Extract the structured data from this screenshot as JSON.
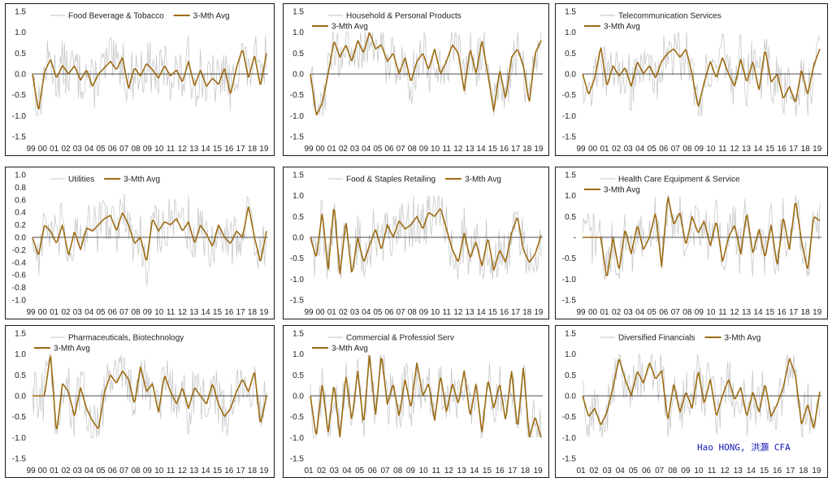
{
  "chart_data": [
    {
      "type": "line",
      "title": "",
      "xlabel": "",
      "ylabel": "",
      "ylim": [
        -1.5,
        1.5
      ],
      "ytick_labels": [
        "1.5",
        "1.0",
        "0.5",
        "0.0",
        "-0.5",
        "-1.0",
        "-1.5"
      ],
      "yticks": [
        1.5,
        1.0,
        0.5,
        0.0,
        -0.5,
        -1.0,
        -1.5
      ],
      "xtick_labels": [
        "99",
        "00",
        "01",
        "02",
        "03",
        "04",
        "05",
        "06",
        "07",
        "08",
        "09",
        "10",
        "11",
        "12",
        "13",
        "14",
        "15",
        "16",
        "17",
        "18",
        "19"
      ],
      "legend": [
        "Food Beverage & Tobacco",
        "3-Mth Avg"
      ],
      "legend_layout": "single-row",
      "avg_key": [
        0.0,
        -0.9,
        0.05,
        0.35,
        -0.1,
        0.2,
        0.0,
        0.2,
        -0.15,
        0.1,
        -0.3,
        0.0,
        0.15,
        0.3,
        0.1,
        0.4,
        -0.35,
        0.15,
        -0.05,
        0.25,
        0.1,
        -0.1,
        0.2,
        -0.05,
        0.1,
        -0.2,
        0.3,
        -0.3,
        0.1,
        -0.3,
        -0.1,
        -0.25,
        0.15,
        -0.5,
        0.15,
        0.6,
        -0.1,
        0.45,
        -0.3,
        0.5
      ]
    },
    {
      "type": "line",
      "title": "",
      "xlabel": "",
      "ylabel": "",
      "ylim": [
        -1.5,
        1.5
      ],
      "ytick_labels": [
        "1.5",
        "1.0",
        "0.5",
        "0.0",
        "-0.5",
        "-1.0",
        "-1.5"
      ],
      "yticks": [
        1.5,
        1.0,
        0.5,
        0.0,
        -0.5,
        -1.0,
        -1.5
      ],
      "xtick_labels": [
        "99",
        "00",
        "01",
        "02",
        "03",
        "04",
        "05",
        "06",
        "07",
        "08",
        "09",
        "10",
        "11",
        "12",
        "13",
        "14",
        "15",
        "16",
        "17",
        "18",
        "19"
      ],
      "legend": [
        "Household & Personal Products",
        "3-Mth Avg"
      ],
      "legend_layout": "two-rows",
      "avg_key": [
        0.0,
        -1.0,
        -0.7,
        0.0,
        0.8,
        0.4,
        0.7,
        0.3,
        0.8,
        0.5,
        1.0,
        0.6,
        0.7,
        0.3,
        0.5,
        0.0,
        0.4,
        -0.2,
        0.3,
        0.5,
        0.1,
        0.6,
        0.0,
        0.3,
        0.7,
        0.5,
        -0.4,
        0.6,
        0.0,
        0.8,
        0.0,
        -0.9,
        0.1,
        -0.6,
        0.4,
        0.6,
        0.2,
        -0.7,
        0.5,
        0.8
      ]
    },
    {
      "type": "line",
      "title": "",
      "xlabel": "",
      "ylabel": "",
      "ylim": [
        -1.5,
        1.5
      ],
      "ytick_labels": [
        "1.5",
        "1.0",
        "0.5",
        "0.0",
        "-0.5",
        "-1.0",
        "-1.5"
      ],
      "yticks": [
        1.5,
        1.0,
        0.5,
        0.0,
        -0.5,
        -1.0,
        -1.5
      ],
      "xtick_labels": [
        "99",
        "00",
        "01",
        "02",
        "03",
        "04",
        "05",
        "06",
        "07",
        "08",
        "09",
        "10",
        "11",
        "12",
        "13",
        "14",
        "15",
        "16",
        "17",
        "18",
        "19"
      ],
      "legend": [
        "Telecommunication Services",
        "3-Mth Avg"
      ],
      "legend_layout": "two-rows",
      "avg_key": [
        0.0,
        -0.5,
        -0.1,
        0.65,
        -0.3,
        0.2,
        -0.05,
        0.15,
        -0.3,
        0.3,
        0.0,
        0.2,
        -0.1,
        0.3,
        0.5,
        0.6,
        0.4,
        0.6,
        0.0,
        -0.8,
        -0.2,
        0.3,
        -0.1,
        0.4,
        0.0,
        -0.3,
        0.35,
        -0.2,
        0.3,
        -0.4,
        0.6,
        -0.2,
        0.0,
        -0.6,
        -0.3,
        -0.7,
        0.1,
        -0.5,
        0.2,
        0.6
      ]
    },
    {
      "type": "line",
      "title": "",
      "xlabel": "",
      "ylabel": "",
      "ylim": [
        -1.0,
        1.0
      ],
      "ytick_labels": [
        "1.0",
        "0.8",
        "0.6",
        "0.4",
        "0.2",
        "0.0",
        "-0.2",
        "-0.4",
        "-0.6",
        "-0.8",
        "-1.0"
      ],
      "yticks": [
        1.0,
        0.8,
        0.6,
        0.4,
        0.2,
        0.0,
        -0.2,
        -0.4,
        -0.6,
        -0.8,
        -1.0
      ],
      "xtick_labels": [
        "99",
        "00",
        "01",
        "02",
        "03",
        "04",
        "05",
        "06",
        "07",
        "08",
        "09",
        "10",
        "11",
        "12",
        "13",
        "14",
        "15",
        "16",
        "17",
        "18",
        "19"
      ],
      "legend": [
        "Utilities",
        "3-Mth Avg"
      ],
      "legend_layout": "single-row",
      "avg_key": [
        0.0,
        -0.3,
        0.2,
        0.1,
        -0.1,
        0.2,
        -0.3,
        0.1,
        -0.2,
        0.15,
        0.1,
        0.2,
        0.3,
        0.35,
        0.1,
        0.4,
        0.2,
        -0.1,
        0.0,
        -0.4,
        0.3,
        0.1,
        0.25,
        0.2,
        0.3,
        0.1,
        0.25,
        -0.1,
        0.2,
        0.05,
        -0.15,
        0.2,
        0.0,
        -0.1,
        0.1,
        0.0,
        0.5,
        0.0,
        -0.4,
        0.1
      ]
    },
    {
      "type": "line",
      "title": "",
      "xlabel": "",
      "ylabel": "",
      "ylim": [
        -1.5,
        1.5
      ],
      "ytick_labels": [
        "1.5",
        "1.0",
        "0.5",
        "0.0",
        "-0.5",
        "-1.0",
        "-1.5"
      ],
      "yticks": [
        1.5,
        1.0,
        0.5,
        0.0,
        -0.5,
        -1.0,
        -1.5
      ],
      "xtick_labels": [
        "99",
        "00",
        "01",
        "02",
        "03",
        "04",
        "05",
        "06",
        "07",
        "08",
        "09",
        "10",
        "11",
        "12",
        "13",
        "14",
        "15",
        "16",
        "17",
        "18",
        "19"
      ],
      "legend": [
        "Food & Staples Retailing",
        "3-Mth Avg"
      ],
      "legend_layout": "single-row",
      "avg_key": [
        0.0,
        -0.5,
        0.6,
        -0.8,
        0.8,
        -0.9,
        0.4,
        -0.9,
        0.0,
        -0.6,
        -0.2,
        0.2,
        -0.3,
        0.3,
        0.0,
        0.4,
        0.2,
        0.3,
        0.5,
        0.2,
        0.6,
        0.5,
        0.7,
        0.2,
        -0.3,
        -0.6,
        0.1,
        -0.5,
        -0.1,
        -0.7,
        0.0,
        -0.8,
        -0.3,
        -0.6,
        0.1,
        0.5,
        -0.3,
        -0.6,
        -0.4,
        0.05
      ]
    },
    {
      "type": "line",
      "title": "",
      "xlabel": "",
      "ylabel": "",
      "ylim": [
        -1.5,
        1.5
      ],
      "ytick_labels": [
        "1.5",
        "1.0",
        "0.5",
        "-",
        "-0.5",
        "-1.0",
        "-1.5"
      ],
      "yticks": [
        1.5,
        1.0,
        0.5,
        0.0,
        -0.5,
        -1.0,
        -1.5
      ],
      "xtick_labels": [
        "99",
        "00",
        "01",
        "02",
        "03",
        "04",
        "05",
        "06",
        "07",
        "08",
        "09",
        "10",
        "11",
        "12",
        "13",
        "14",
        "15",
        "16",
        "17",
        "18",
        "19"
      ],
      "legend": [
        "Health Care Equipment & Service",
        "3-Mth Avg"
      ],
      "legend_layout": "two-rows",
      "avg_key": [
        0.0,
        0.0,
        0.0,
        0.0,
        -1.0,
        0.0,
        -0.8,
        0.2,
        -0.4,
        0.3,
        -0.3,
        0.0,
        0.6,
        -0.7,
        1.0,
        0.3,
        0.6,
        -0.2,
        0.5,
        0.1,
        0.4,
        -0.2,
        0.4,
        -0.6,
        0.0,
        0.3,
        -0.4,
        0.6,
        -0.4,
        0.2,
        -0.5,
        0.3,
        -0.7,
        0.5,
        -0.3,
        0.9,
        -0.1,
        -0.8,
        0.5,
        0.4
      ]
    },
    {
      "type": "line",
      "title": "",
      "xlabel": "",
      "ylabel": "",
      "ylim": [
        -1.5,
        1.5
      ],
      "ytick_labels": [
        "1.5",
        "1.0",
        "0.5",
        "0.0",
        "-0.5",
        "-1.0",
        "-1.5"
      ],
      "yticks": [
        1.5,
        1.0,
        0.5,
        0.0,
        -0.5,
        -1.0,
        -1.5
      ],
      "xtick_labels": [
        "99",
        "00",
        "01",
        "02",
        "03",
        "04",
        "05",
        "06",
        "07",
        "08",
        "09",
        "10",
        "11",
        "12",
        "13",
        "14",
        "15",
        "16",
        "17",
        "18",
        "19"
      ],
      "legend": [
        "Pharmaceuticals, Biotechnology",
        "3-Mth Avg"
      ],
      "legend_layout": "two-rows",
      "avg_key": [
        0.0,
        0.0,
        0.0,
        1.0,
        -0.9,
        0.3,
        0.1,
        -0.5,
        0.2,
        -0.3,
        -0.6,
        -0.8,
        0.1,
        0.5,
        0.3,
        0.6,
        0.4,
        -0.2,
        0.7,
        0.1,
        0.3,
        -0.4,
        0.5,
        0.1,
        -0.2,
        0.2,
        -0.3,
        0.2,
        0.0,
        -0.2,
        0.3,
        -0.2,
        -0.5,
        -0.3,
        0.1,
        0.4,
        0.1,
        0.6,
        -0.7,
        0.0
      ]
    },
    {
      "type": "line",
      "title": "",
      "xlabel": "",
      "ylabel": "",
      "ylim": [
        -1.5,
        1.5
      ],
      "ytick_labels": [
        "1.5",
        "1.0",
        "0.5",
        "0.0",
        "-0.5",
        "-1.0",
        "-1.5"
      ],
      "yticks": [
        1.5,
        1.0,
        0.5,
        0.0,
        -0.5,
        -1.0,
        -1.5
      ],
      "xtick_labels": [
        "01",
        "02",
        "03",
        "04",
        "05",
        "06",
        "07",
        "08",
        "09",
        "10",
        "11",
        "12",
        "13",
        "14",
        "15",
        "16",
        "17",
        "18",
        "19"
      ],
      "legend": [
        "Commercial & Professiol Serv",
        "3-Mth Avg"
      ],
      "legend_layout": "two-rows",
      "avg_key": [
        0.0,
        -1.0,
        0.3,
        -0.9,
        0.3,
        -1.0,
        0.5,
        -0.6,
        0.6,
        -0.7,
        1.0,
        -0.5,
        1.0,
        -0.2,
        0.3,
        -0.5,
        0.4,
        -0.3,
        0.8,
        0.0,
        0.3,
        -0.6,
        0.5,
        -0.4,
        0.3,
        -0.2,
        0.6,
        -0.5,
        0.3,
        -0.9,
        0.4,
        -0.3,
        0.3,
        -0.6,
        0.6,
        -0.8,
        0.7,
        -1.0,
        -0.5,
        -1.0
      ]
    },
    {
      "type": "line",
      "title": "",
      "xlabel": "",
      "ylabel": "",
      "ylim": [
        -1.5,
        1.5
      ],
      "ytick_labels": [
        "1.5",
        "1.0",
        "0.5",
        "0.0",
        "-0.5",
        "-1.0",
        "-1.5"
      ],
      "yticks": [
        1.5,
        1.0,
        0.5,
        0.0,
        -0.5,
        -1.0,
        -1.5
      ],
      "xtick_labels": [
        "01",
        "02",
        "03",
        "04",
        "05",
        "06",
        "07",
        "08",
        "09",
        "10",
        "11",
        "12",
        "13",
        "14",
        "15",
        "16",
        "17",
        "18",
        "19"
      ],
      "legend": [
        "Diversified Financials",
        "3-Mth Avg"
      ],
      "legend_layout": "single-row",
      "avg_key": [
        0.0,
        -0.5,
        -0.3,
        -0.7,
        -0.4,
        0.2,
        0.9,
        0.4,
        0.0,
        0.6,
        0.3,
        0.8,
        0.4,
        0.6,
        -0.6,
        0.3,
        -0.4,
        0.1,
        -0.3,
        0.6,
        -0.2,
        0.4,
        -0.5,
        0.0,
        0.4,
        -0.1,
        0.2,
        -0.5,
        0.1,
        -0.4,
        0.3,
        -0.5,
        -0.2,
        0.2,
        0.9,
        0.5,
        -0.7,
        -0.2,
        -0.8,
        0.1
      ]
    }
  ],
  "author": "Hao HONG, 洪灝 CFA"
}
